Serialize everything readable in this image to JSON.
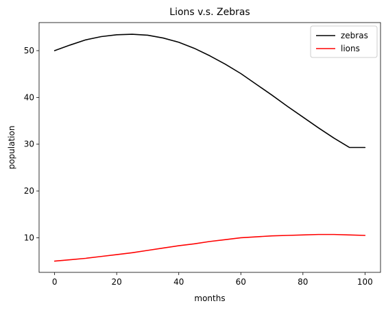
{
  "chart_data": {
    "type": "line",
    "title": "Lions v.s. Zebras",
    "xlabel": "months",
    "ylabel": "population",
    "xlim": [
      -5,
      105
    ],
    "ylim": [
      2.6,
      56
    ],
    "xticks": [
      0,
      20,
      40,
      60,
      80,
      100
    ],
    "yticks": [
      10,
      20,
      30,
      40,
      50
    ],
    "grid": false,
    "legend_position": "top-right",
    "series": [
      {
        "name": "zebras",
        "color": "#000000",
        "x": [
          0,
          5,
          10,
          15,
          20,
          25,
          30,
          35,
          40,
          45,
          50,
          55,
          60,
          65,
          70,
          75,
          80,
          85,
          90,
          95,
          100
        ],
        "y": [
          50.0,
          51.2,
          52.3,
          53.0,
          53.4,
          53.5,
          53.3,
          52.7,
          51.8,
          50.5,
          48.9,
          47.1,
          45.1,
          42.8,
          40.5,
          38.1,
          35.8,
          33.5,
          31.3,
          29.3,
          29.3
        ]
      },
      {
        "name": "lions",
        "color": "#ff0000",
        "x": [
          0,
          5,
          10,
          15,
          20,
          25,
          30,
          35,
          40,
          45,
          50,
          55,
          60,
          65,
          70,
          75,
          80,
          85,
          90,
          95,
          100
        ],
        "y": [
          5.0,
          5.3,
          5.6,
          6.0,
          6.4,
          6.8,
          7.3,
          7.8,
          8.3,
          8.7,
          9.2,
          9.6,
          10.0,
          10.2,
          10.4,
          10.5,
          10.6,
          10.7,
          10.7,
          10.6,
          10.5
        ]
      }
    ]
  }
}
